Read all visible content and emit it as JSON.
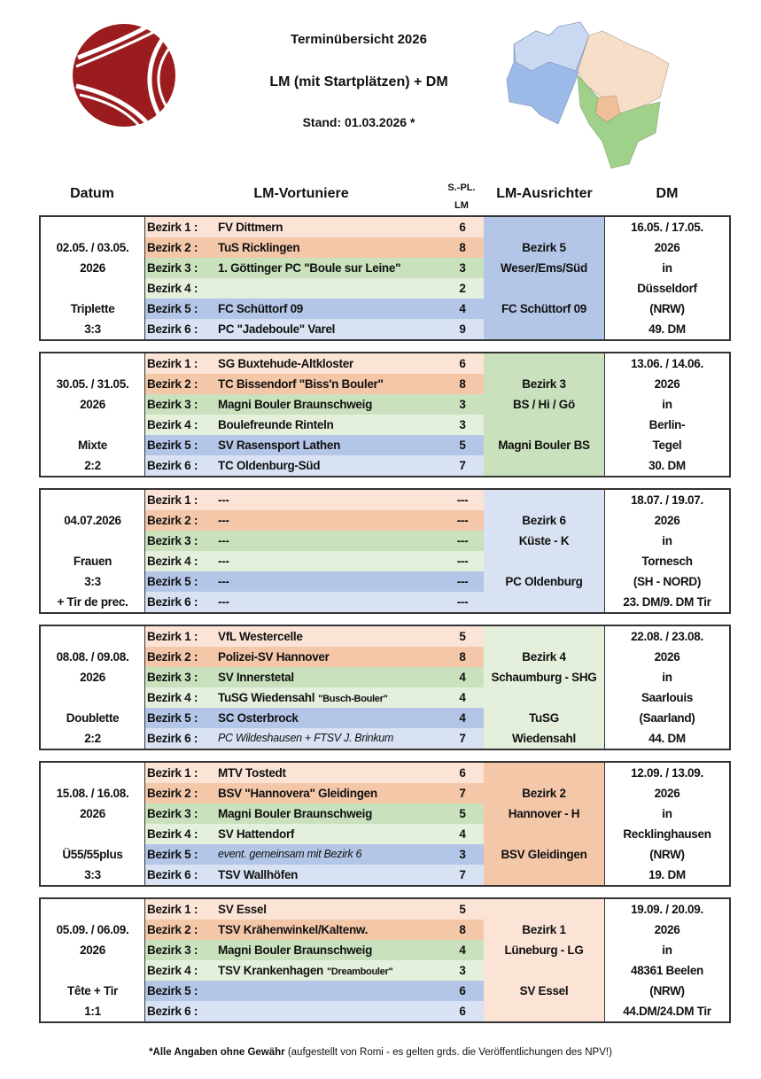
{
  "header": {
    "title": "Terminübersicht 2026",
    "subtitle": "LM (mit Startplätzen) + DM",
    "stand": "Stand: 01.03.2026 *",
    "logo_icon": "boule-ball-logo",
    "map_icon": "niedersachsen-bezirke-map"
  },
  "columns": {
    "datum": "Datum",
    "vortuniere": "LM-Vortuniere",
    "spl_line1": "S.-PL.",
    "spl_line2": "LM",
    "ausrichter": "LM-Ausrichter",
    "dm": "DM"
  },
  "bezirk_colors": [
    "#fbe4d5",
    "#f4c7a9",
    "#c9e2bd",
    "#e4f0dc",
    "#b4c6e7",
    "#d9e2f3"
  ],
  "blocks": [
    {
      "datum": [
        "",
        "02.05. / 03.05.",
        "2026",
        "",
        "Triplette",
        "3:3"
      ],
      "rows": [
        {
          "label": "Bezirk 1 :",
          "team": "FV Dittmern",
          "spl": "6"
        },
        {
          "label": "Bezirk 2 :",
          "team": "TuS Ricklingen",
          "spl": "8"
        },
        {
          "label": "Bezirk 3 :",
          "team": "1. Göttinger PC \"Boule sur Leine\"",
          "spl": "3"
        },
        {
          "label": "Bezirk 4 :",
          "team": "",
          "spl": "2"
        },
        {
          "label": "Bezirk 5 :",
          "team": "FC Schüttorf 09",
          "spl": "4"
        },
        {
          "label": "Bezirk 6 :",
          "team": "PC \"Jadeboule\" Varel",
          "spl": "9"
        }
      ],
      "host_bezirk": 5,
      "host": [
        "",
        "Bezirk 5",
        "Weser/Ems/Süd",
        "",
        "FC Schüttorf 09",
        ""
      ],
      "dm": [
        "16.05. / 17.05.",
        "2026",
        "in",
        "Düsseldorf",
        "(NRW)",
        "49. DM"
      ]
    },
    {
      "datum": [
        "",
        "30.05. / 31.05.",
        "2026",
        "",
        "Mixte",
        "2:2"
      ],
      "rows": [
        {
          "label": "Bezirk 1 :",
          "team": "SG Buxtehude-Altkloster",
          "spl": "6"
        },
        {
          "label": "Bezirk 2 :",
          "team": "TC Bissendorf \"Biss'n Bouler\"",
          "spl": "8"
        },
        {
          "label": "Bezirk 3 :",
          "team": "Magni Bouler Braunschweig",
          "spl": "3"
        },
        {
          "label": "Bezirk 4 :",
          "team": "Boulefreunde Rinteln",
          "spl": "3"
        },
        {
          "label": "Bezirk 5 :",
          "team": "SV Rasensport Lathen",
          "spl": "5"
        },
        {
          "label": "Bezirk 6 :",
          "team": "TC Oldenburg-Süd",
          "spl": "7"
        }
      ],
      "host_bezirk": 3,
      "host": [
        "",
        "Bezirk 3",
        "BS / Hi / Gö",
        "",
        "Magni Bouler BS",
        ""
      ],
      "dm": [
        "13.06. / 14.06.",
        "2026",
        "in",
        "Berlin-",
        "Tegel",
        "30. DM"
      ]
    },
    {
      "datum": [
        "",
        "04.07.2026",
        "",
        "Frauen",
        "3:3",
        "+ Tir de prec."
      ],
      "rows": [
        {
          "label": "Bezirk 1 :",
          "team": "---",
          "spl": "---"
        },
        {
          "label": "Bezirk 2 :",
          "team": "---",
          "spl": "---"
        },
        {
          "label": "Bezirk 3 :",
          "team": "---",
          "spl": "---"
        },
        {
          "label": "Bezirk 4 :",
          "team": "---",
          "spl": "---"
        },
        {
          "label": "Bezirk 5 :",
          "team": "---",
          "spl": "---"
        },
        {
          "label": "Bezirk 6 :",
          "team": "---",
          "spl": "---"
        }
      ],
      "host_bezirk": 6,
      "host": [
        "",
        "Bezirk 6",
        "Küste - K",
        "",
        "PC Oldenburg",
        ""
      ],
      "dm": [
        "18.07. / 19.07.",
        "2026",
        "in",
        "Tornesch",
        "(SH - NORD)",
        "23. DM/9. DM Tir"
      ]
    },
    {
      "datum": [
        "",
        "08.08. / 09.08.",
        "2026",
        "",
        "Doublette",
        "2:2"
      ],
      "rows": [
        {
          "label": "Bezirk 1 :",
          "team": "VfL Westercelle",
          "spl": "5"
        },
        {
          "label": "Bezirk 2 :",
          "team": "Polizei-SV Hannover",
          "spl": "8"
        },
        {
          "label": "Bezirk 3 :",
          "team": "SV Innerstetal",
          "spl": "4"
        },
        {
          "label": "Bezirk 4 :",
          "team": "TuSG Wiedensahl",
          "team_small": "\"Busch-Bouler\"",
          "spl": "4"
        },
        {
          "label": "Bezirk 5 :",
          "team": "SC Osterbrock",
          "spl": "4"
        },
        {
          "label": "Bezirk 6 :",
          "team": "PC Wildeshausen + FTSV J. Brinkum",
          "italic": true,
          "spl": "7"
        }
      ],
      "host_bezirk": 4,
      "host": [
        "",
        "Bezirk 4",
        "Schaumburg - SHG",
        "",
        "TuSG",
        "Wiedensahl"
      ],
      "dm": [
        "22.08. / 23.08.",
        "2026",
        "in",
        "Saarlouis",
        "(Saarland)",
        "44. DM"
      ]
    },
    {
      "datum": [
        "",
        "15.08. / 16.08.",
        "2026",
        "",
        "Ü55/55plus",
        "3:3"
      ],
      "rows": [
        {
          "label": "Bezirk 1 :",
          "team": "MTV Tostedt",
          "spl": "6"
        },
        {
          "label": "Bezirk 2 :",
          "team": "BSV \"Hannovera\" Gleidingen",
          "spl": "7"
        },
        {
          "label": "Bezirk 3 :",
          "team": "Magni Bouler Braunschweig",
          "spl": "5"
        },
        {
          "label": "Bezirk 4 :",
          "team": "SV Hattendorf",
          "spl": "4"
        },
        {
          "label": "Bezirk 5 :",
          "team": "event. gemeinsam mit Bezirk 6",
          "italic": true,
          "spl": "3"
        },
        {
          "label": "Bezirk 6 :",
          "team": "TSV Wallhöfen",
          "spl": "7"
        }
      ],
      "host_bezirk": 2,
      "host": [
        "",
        "Bezirk 2",
        "Hannover - H",
        "",
        "BSV Gleidingen",
        ""
      ],
      "dm": [
        "12.09. / 13.09.",
        "2026",
        "in",
        "Recklinghausen",
        "(NRW)",
        "19. DM"
      ]
    },
    {
      "datum": [
        "",
        "05.09. / 06.09.",
        "2026",
        "",
        "Tête + Tir",
        "1:1"
      ],
      "rows": [
        {
          "label": "Bezirk 1 :",
          "team": "SV Essel",
          "spl": "5"
        },
        {
          "label": "Bezirk 2 :",
          "team": "TSV Krähenwinkel/Kaltenw.",
          "spl": "8"
        },
        {
          "label": "Bezirk 3 :",
          "team": "Magni Bouler Braunschweig",
          "spl": "4"
        },
        {
          "label": "Bezirk 4 :",
          "team": "TSV Krankenhagen",
          "team_small": "\"Dreambouler\"",
          "spl": "3"
        },
        {
          "label": "Bezirk 5 :",
          "team": "",
          "spl": "6"
        },
        {
          "label": "Bezirk 6 :",
          "team": "",
          "spl": "6"
        }
      ],
      "host_bezirk": 1,
      "host": [
        "",
        "Bezirk 1",
        "Lüneburg - LG",
        "",
        "SV Essel",
        ""
      ],
      "dm": [
        "19.09. / 20.09.",
        "2026",
        "in",
        "48361 Beelen",
        "(NRW)",
        "44.DM/24.DM Tir"
      ]
    }
  ],
  "footer": {
    "bold": "*Alle Angaben ohne Gewähr",
    "rest": " (aufgestellt von Romi - es gelten grds. die Veröffentlichungen des NPV!)"
  }
}
